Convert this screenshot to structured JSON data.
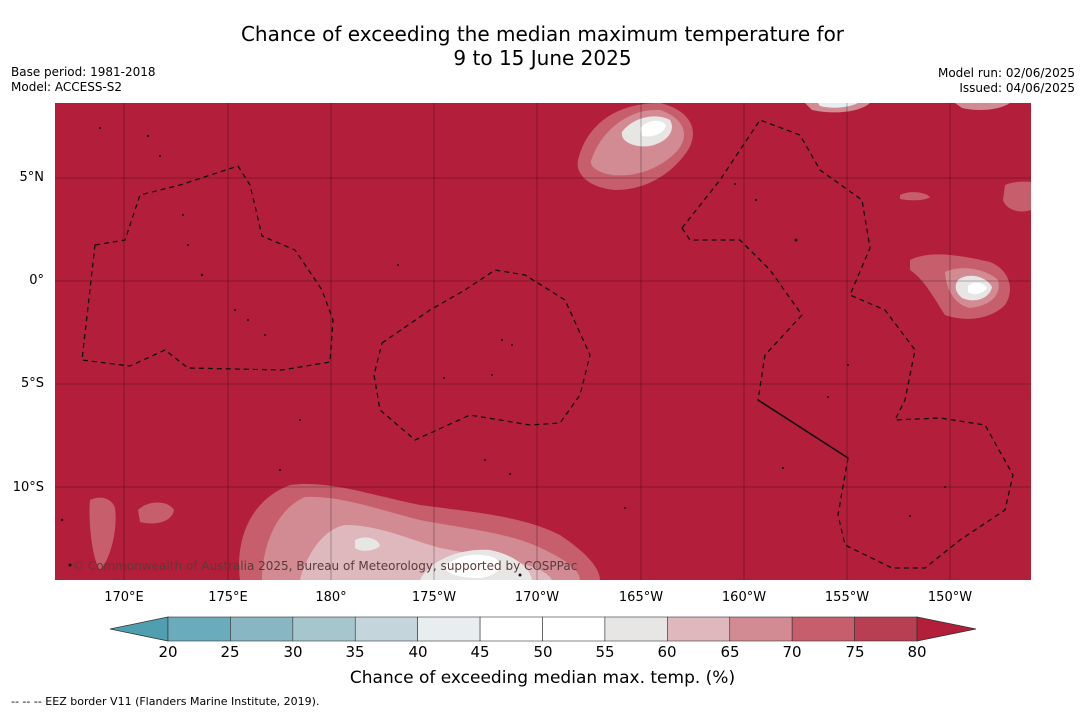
{
  "title_line1": "Chance of exceeding the median maximum temperature for",
  "title_line2": "9 to 15 June 2025",
  "meta_left": {
    "base_period": "Base period: 1981-2018",
    "model": "Model: ACCESS-S2"
  },
  "meta_right": {
    "model_run": "Model run: 02/06/2025",
    "issued": "Issued: 04/06/2025"
  },
  "map": {
    "background_color": "#b31e3a",
    "lat_labels": [
      "5°N",
      "0°",
      "5°S",
      "10°S"
    ],
    "lon_labels": [
      "170°E",
      "175°E",
      "180°",
      "175°W",
      "170°W",
      "165°W",
      "160°W",
      "155°W",
      "150°W"
    ],
    "copyright": "© Commonwealth of Australia 2025, Bureau of Meteorology, supported by COSPPac"
  },
  "colorbar": {
    "title": "Chance of exceeding median max. temp. (%)",
    "ticks": [
      "20",
      "25",
      "30",
      "35",
      "40",
      "45",
      "50",
      "55",
      "60",
      "65",
      "70",
      "75",
      "80"
    ],
    "colors": [
      "#6aacbb",
      "#88b6c2",
      "#a5c6cc",
      "#c4d6dc",
      "#e8eef0",
      "#ffffff",
      "#ffffff",
      "#e8e6e5",
      "#dfb8bd",
      "#d28a93",
      "#c65e6c",
      "#b83e52"
    ],
    "low_extend_color": "#4f9fb0",
    "high_extend_color": "#b31e3a"
  },
  "footnote": "--  --  -- EEZ border V11 (Flanders Marine Institute, 2019)."
}
